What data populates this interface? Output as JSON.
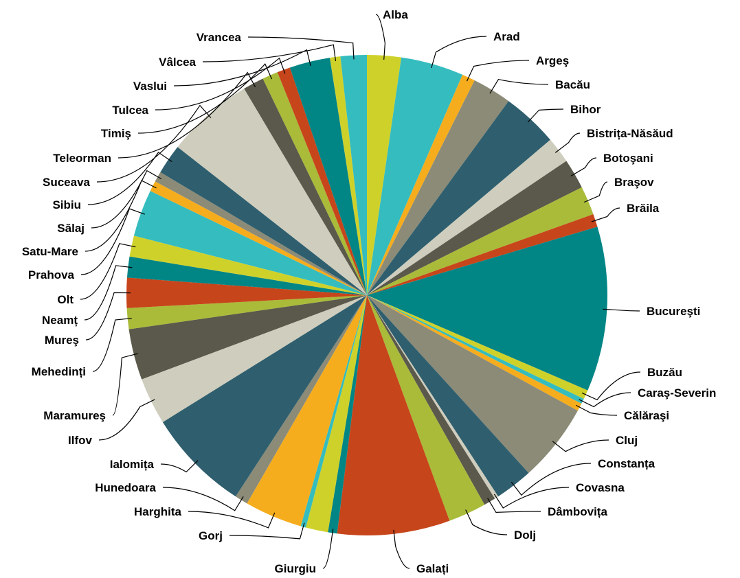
{
  "chart_data": {
    "type": "pie",
    "title": "",
    "legend": "none",
    "start_angle_deg": 90,
    "direction": "clockwise",
    "slices": [
      {
        "label": "Alba",
        "value": 2.6,
        "color": "#cfd12b"
      },
      {
        "label": "Arad",
        "value": 4.8,
        "color": "#35bcbf"
      },
      {
        "label": "Argeş",
        "value": 1.0,
        "color": "#f6ad1d"
      },
      {
        "label": "Bacău",
        "value": 3.0,
        "color": "#8b8b78"
      },
      {
        "label": "Bihor",
        "value": 4.3,
        "color": "#2f5f6e"
      },
      {
        "label": "Bistrița-Năsăud",
        "value": 2.0,
        "color": "#cfcdbd"
      },
      {
        "label": "Botoşani",
        "value": 2.3,
        "color": "#5a594b"
      },
      {
        "label": "Braşov",
        "value": 2.2,
        "color": "#a9bb39"
      },
      {
        "label": "Brăila",
        "value": 1.0,
        "color": "#c7451b"
      },
      {
        "label": "Bucureşti",
        "value": 12.6,
        "color": "#028585"
      },
      {
        "label": "Buzău",
        "value": 0.7,
        "color": "#cfd12b"
      },
      {
        "label": "Caraş-Severin",
        "value": 0.4,
        "color": "#35bcbf"
      },
      {
        "label": "Călăraşi",
        "value": 0.6,
        "color": "#f6ad1d"
      },
      {
        "label": "Cluj",
        "value": 6.0,
        "color": "#8b8b78"
      },
      {
        "label": "Constanța",
        "value": 2.9,
        "color": "#2f5f6e"
      },
      {
        "label": "Covasna",
        "value": 0.3,
        "color": "#cfcdbd"
      },
      {
        "label": "Dâmbovița",
        "value": 0.9,
        "color": "#5a594b"
      },
      {
        "label": "Dolj",
        "value": 2.9,
        "color": "#a9bb39"
      },
      {
        "label": "Galați",
        "value": 8.6,
        "color": "#c7451b"
      },
      {
        "label": "Giurgiu",
        "value": 0.7,
        "color": "#028585"
      },
      {
        "label": "Giurgiu",
        "value": 1.7,
        "color": "#cfd12b"
      },
      {
        "label": "Gorj",
        "value": 0.4,
        "color": "#35bcbf"
      },
      {
        "label": "Harghita",
        "value": 4.4,
        "color": "#f6ad1d"
      },
      {
        "label": "Hunedoara",
        "value": 1.0,
        "color": "#8b8b78"
      },
      {
        "label": "Ialomița",
        "value": 7.9,
        "color": "#2f5f6e"
      },
      {
        "label": "Ilfov",
        "value": 3.6,
        "color": "#cfcdbd"
      },
      {
        "label": "Maramureş",
        "value": 3.9,
        "color": "#5a594b"
      },
      {
        "label": "Mehedinți",
        "value": 1.6,
        "color": "#a9bb39"
      },
      {
        "label": "Mureş",
        "value": 2.3,
        "color": "#c7451b"
      },
      {
        "label": "Neamț",
        "value": 1.6,
        "color": "#028585"
      },
      {
        "label": "Olt",
        "value": 1.6,
        "color": "#cfd12b"
      },
      {
        "label": "Prahova",
        "value": 3.6,
        "color": "#35bcbf"
      },
      {
        "label": "Satu-Mare",
        "value": 0.8,
        "color": "#f6ad1d"
      },
      {
        "label": "Sălaj",
        "value": 0.8,
        "color": "#8b8b78"
      },
      {
        "label": "Sibiu",
        "value": 2.3,
        "color": "#2f5f6e"
      },
      {
        "label": "Suceava",
        "value": 6.7,
        "color": "#cfcdbd"
      },
      {
        "label": "Teleorman",
        "value": 1.6,
        "color": "#5a594b"
      },
      {
        "label": "Timiş",
        "value": 1.2,
        "color": "#a9bb39"
      },
      {
        "label": "Tulcea",
        "value": 1.0,
        "color": "#c7451b"
      },
      {
        "label": "Vaslui",
        "value": 3.1,
        "color": "#028585"
      },
      {
        "label": "Vâlcea",
        "value": 0.8,
        "color": "#cfd12b"
      },
      {
        "label": "Vrancea",
        "value": 2.0,
        "color": "#35bcbf"
      }
    ]
  }
}
